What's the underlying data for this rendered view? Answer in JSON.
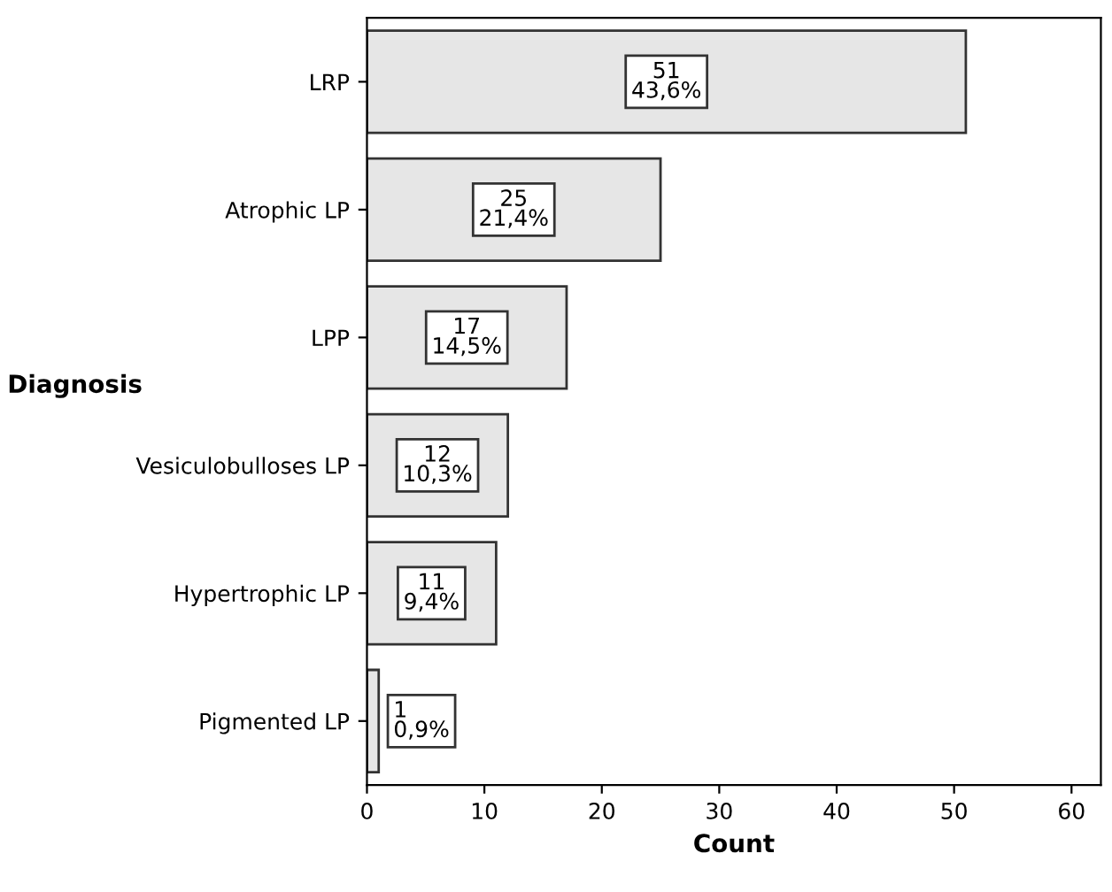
{
  "chart_data": {
    "type": "bar",
    "orientation": "horizontal",
    "xlabel": "Count",
    "ylabel": "Diagnosis",
    "categories": [
      "LRP",
      "Atrophic LP",
      "LPP",
      "Vesiculobulloses LP",
      "Hypertrophic LP",
      "Pigmented LP"
    ],
    "values": [
      51,
      25,
      17,
      12,
      11,
      1
    ],
    "value_labels": [
      "51\n43,6%",
      "25\n21,4%",
      "17\n14,5%",
      "12\n10,3%",
      "11\n9,4%",
      "1\n0,9%"
    ],
    "color": "#e6e6e6",
    "xlim": [
      0,
      62.5
    ],
    "xticks": [
      0,
      10,
      20,
      30,
      40,
      50,
      60
    ],
    "grid": false,
    "legend": false
  }
}
